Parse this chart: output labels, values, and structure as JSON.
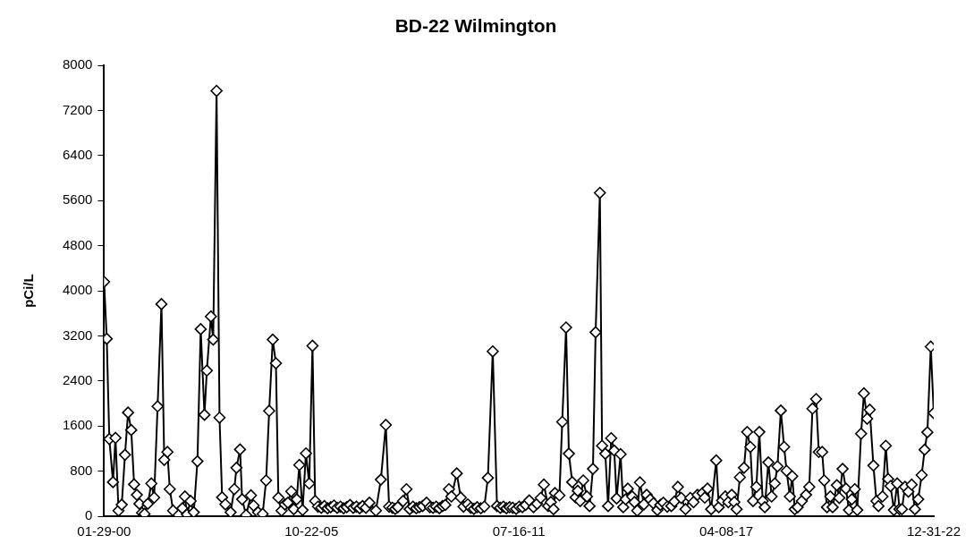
{
  "chart_data": {
    "type": "line",
    "title": "BD-22 Wilmington",
    "ylabel": "pCi/L",
    "marker": "diamond",
    "line_style": "solid",
    "x": [
      "2000-01-29",
      "2000-02-25",
      "2000-03-22",
      "2000-04-28",
      "2000-05-23",
      "2000-06-23",
      "2000-07-25",
      "2000-08-27",
      "2000-09-27",
      "2000-10-29",
      "2000-11-27",
      "2000-12-25",
      "2001-01-20",
      "2001-02-15",
      "2001-03-12",
      "2001-04-14",
      "2001-05-20",
      "2001-06-17",
      "2001-07-22",
      "2001-08-30",
      "2001-09-27",
      "2001-10-29",
      "2001-11-22",
      "2001-12-25",
      "2002-02-19",
      "2002-03-29",
      "2002-04-24",
      "2002-05-14",
      "2002-06-20",
      "2002-07-22",
      "2002-08-28",
      "2002-09-30",
      "2002-11-07",
      "2002-12-01",
      "2003-01-11",
      "2003-02-03",
      "2003-03-09",
      "2003-04-08",
      "2003-05-04",
      "2003-06-06",
      "2003-07-29",
      "2003-09-04",
      "2003-09-26",
      "2003-11-01",
      "2003-11-22",
      "2004-01-01",
      "2004-02-19",
      "2004-03-17",
      "2004-05-01",
      "2004-06-16",
      "2004-07-21",
      "2004-08-21",
      "2004-09-26",
      "2004-10-28",
      "2004-11-22",
      "2004-12-24",
      "2005-01-26",
      "2005-02-26",
      "2005-04-01",
      "2005-04-26",
      "2005-05-26",
      "2005-06-21",
      "2005-07-24",
      "2005-08-27",
      "2005-09-29",
      "2005-11-01",
      "2005-11-28",
      "2005-12-27",
      "2006-01-29",
      "2006-03-01",
      "2006-04-02",
      "2006-05-04",
      "2006-06-06",
      "2006-07-08",
      "2006-08-10",
      "2006-09-11",
      "2006-10-13",
      "2006-11-15",
      "2006-12-17",
      "2007-01-18",
      "2007-02-20",
      "2007-03-22",
      "2007-04-24",
      "2007-05-30",
      "2007-08-03",
      "2007-09-22",
      "2007-11-11",
      "2007-12-14",
      "2008-01-17",
      "2008-02-14",
      "2008-03-11",
      "2008-05-03",
      "2008-06-06",
      "2008-07-09",
      "2008-08-11",
      "2008-09-13",
      "2008-10-15",
      "2008-11-16",
      "2008-12-26",
      "2009-01-29",
      "2009-03-01",
      "2009-04-02",
      "2009-05-04",
      "2009-06-06",
      "2009-07-03",
      "2009-08-09",
      "2009-09-03",
      "2009-10-27",
      "2009-12-06",
      "2010-01-03",
      "2010-02-15",
      "2010-03-18",
      "2010-04-18",
      "2010-05-21",
      "2010-06-27",
      "2010-08-01",
      "2010-09-06",
      "2010-10-25",
      "2010-12-07",
      "2011-01-09",
      "2011-02-10",
      "2011-03-12",
      "2011-04-13",
      "2011-05-15",
      "2011-06-18",
      "2011-07-19",
      "2011-08-20",
      "2011-09-22",
      "2011-10-28",
      "2011-12-10",
      "2012-01-15",
      "2012-02-21",
      "2012-03-24",
      "2012-05-06",
      "2012-06-02",
      "2012-06-29",
      "2012-07-14",
      "2012-08-28",
      "2012-09-25",
      "2012-11-03",
      "2012-12-01",
      "2013-01-04",
      "2013-02-07",
      "2013-03-01",
      "2013-03-25",
      "2013-04-25",
      "2013-06-01",
      "2013-06-28",
      "2013-08-01",
      "2013-08-28",
      "2013-10-10",
      "2013-11-01",
      "2013-12-04",
      "2014-01-01",
      "2014-02-01",
      "2014-03-04",
      "2014-03-28",
      "2014-05-07",
      "2014-06-03",
      "2014-06-27",
      "2014-07-19",
      "2014-09-01",
      "2014-09-24",
      "2014-10-22",
      "2014-11-18",
      "2014-12-28",
      "2015-01-25",
      "2015-03-01",
      "2015-04-03",
      "2015-05-13",
      "2015-06-12",
      "2015-07-12",
      "2015-08-21",
      "2015-10-01",
      "2015-11-01",
      "2015-12-06",
      "2016-01-09",
      "2016-02-21",
      "2016-04-10",
      "2016-05-12",
      "2016-06-21",
      "2016-08-10",
      "2016-09-02",
      "2016-09-30",
      "2016-11-06",
      "2016-12-27",
      "2017-01-22",
      "2017-02-24",
      "2017-03-28",
      "2017-04-28",
      "2017-06-01",
      "2017-06-28",
      "2017-07-21",
      "2017-08-23",
      "2017-10-03",
      "2017-11-04",
      "2017-12-06",
      "2018-01-03",
      "2018-02-05",
      "2018-03-07",
      "2018-04-10",
      "2018-05-01",
      "2018-06-06",
      "2018-07-09",
      "2018-08-10",
      "2018-09-06",
      "2018-10-10",
      "2018-11-12",
      "2018-12-07",
      "2019-01-09",
      "2019-02-02",
      "2019-02-28",
      "2019-03-29",
      "2019-05-10",
      "2019-06-21",
      "2019-07-24",
      "2019-08-25",
      "2019-10-01",
      "2019-10-28",
      "2019-12-01",
      "2019-12-22",
      "2020-01-19",
      "2020-02-21",
      "2020-03-16",
      "2020-04-27",
      "2020-05-22",
      "2020-06-24",
      "2020-07-28",
      "2020-08-27",
      "2020-09-25",
      "2020-10-25",
      "2020-11-19",
      "2020-12-28",
      "2021-01-25",
      "2021-02-27",
      "2021-03-25",
      "2021-05-01",
      "2021-06-01",
      "2021-06-21",
      "2021-08-01",
      "2021-09-03",
      "2021-09-27",
      "2021-10-21",
      "2021-11-24",
      "2021-12-27",
      "2022-01-19",
      "2022-02-13",
      "2022-03-16",
      "2022-04-19",
      "2022-05-22",
      "2022-06-24",
      "2022-07-27",
      "2022-08-31",
      "2022-09-30",
      "2022-10-28",
      "2022-12-01",
      "2022-12-31"
    ],
    "series": [
      {
        "color": "#000000",
        "values": [
          4160,
          3150,
          1370,
          605,
          1390,
          100,
          205,
          1090,
          1840,
          1530,
          565,
          380,
          220,
          60,
          40,
          220,
          580,
          330,
          1950,
          3765,
          1000,
          1140,
          480,
          100,
          20,
          140,
          350,
          30,
          270,
          70,
          975,
          3320,
          1800,
          2585,
          3545,
          3135,
          7550,
          1750,
          335,
          210,
          70,
          480,
          860,
          1185,
          300,
          20,
          370,
          190,
          70,
          40,
          635,
          1870,
          3135,
          2715,
          330,
          100,
          210,
          240,
          440,
          125,
          300,
          910,
          110,
          1115,
          580,
          3025,
          270,
          170,
          150,
          180,
          140,
          160,
          190,
          150,
          170,
          140,
          160,
          200,
          150,
          170,
          140,
          180,
          150,
          240,
          100,
          650,
          1620,
          170,
          150,
          130,
          160,
          270,
          480,
          125,
          170,
          140,
          160,
          180,
          240,
          160,
          150,
          170,
          140,
          180,
          200,
          480,
          350,
          760,
          330,
          170,
          210,
          150,
          130,
          160,
          140,
          170,
          680,
          2925,
          180,
          150,
          170,
          140,
          160,
          150,
          130,
          170,
          160,
          200,
          280,
          160,
          220,
          325,
          560,
          180,
          250,
          125,
          410,
          370,
          1675,
          3350,
          1110,
          605,
          335,
          450,
          270,
          635,
          350,
          180,
          840,
          3265,
          5740,
          1250,
          1110,
          180,
          1385,
          1165,
          315,
          1100,
          160,
          300,
          490,
          350,
          250,
          100,
          600,
          210,
          380,
          300,
          230,
          110,
          200,
          240,
          170,
          180,
          260,
          520,
          325,
          125,
          325,
          250,
          380,
          410,
          330,
          490,
          125,
          990,
          160,
          280,
          350,
          250,
          380,
          250,
          125,
          690,
          860,
          1495,
          1230,
          270,
          520,
          1495,
          270,
          160,
          955,
          350,
          580,
          885,
          1875,
          1230,
          805,
          350,
          710,
          125,
          160,
          270,
          380,
          520,
          1910,
          2080,
          1140,
          1140,
          635,
          160,
          350,
          160,
          550,
          325,
          840,
          490,
          110,
          300,
          480,
          110,
          1465,
          2180,
          1730,
          1890,
          900,
          270,
          180,
          350,
          1250,
          660,
          535,
          110,
          580,
          125,
          125,
          520,
          435,
          560,
          125,
          300,
          730,
          1180,
          1490,
          3010,
          1830
        ]
      }
    ],
    "xlim": [
      "2000-01-29",
      "2022-12-31"
    ],
    "xticks": [
      {
        "value": "2000-01-29",
        "label": "01-29-00"
      },
      {
        "value": "2005-10-22",
        "label": "10-22-05"
      },
      {
        "value": "2011-07-16",
        "label": "07-16-11"
      },
      {
        "value": "2017-04-08",
        "label": "04-08-17"
      },
      {
        "value": "2022-12-31",
        "label": "12-31-22"
      }
    ],
    "ylim": [
      0,
      8000
    ],
    "yticks": [
      0,
      800,
      1600,
      2400,
      3200,
      4000,
      4800,
      5600,
      6400,
      7200,
      8000
    ]
  }
}
